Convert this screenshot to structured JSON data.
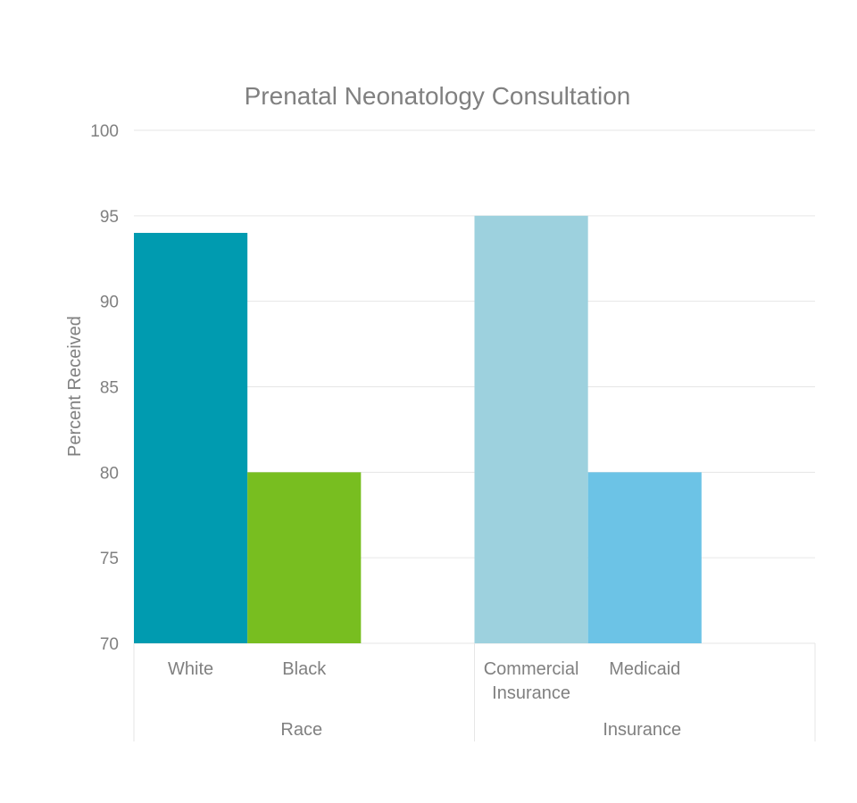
{
  "chart_data": {
    "type": "bar",
    "title": "Prenatal Neonatology Consultation",
    "xlabel": "",
    "ylabel": "Percent Received",
    "ylim": [
      70,
      100
    ],
    "yticks": [
      70,
      75,
      80,
      85,
      90,
      95,
      100
    ],
    "grid": true,
    "legend": "none",
    "groups": [
      {
        "name": "Race",
        "categories": [
          "White",
          "Black"
        ],
        "values": [
          94,
          80
        ],
        "colors": [
          "#009BB0",
          "#78BE20"
        ]
      },
      {
        "name": "Insurance",
        "categories": [
          "Commercial Insurance",
          "Medicaid"
        ],
        "values": [
          95,
          80
        ],
        "colors": [
          "#9DD1DE",
          "#6CC3E6"
        ]
      }
    ]
  }
}
